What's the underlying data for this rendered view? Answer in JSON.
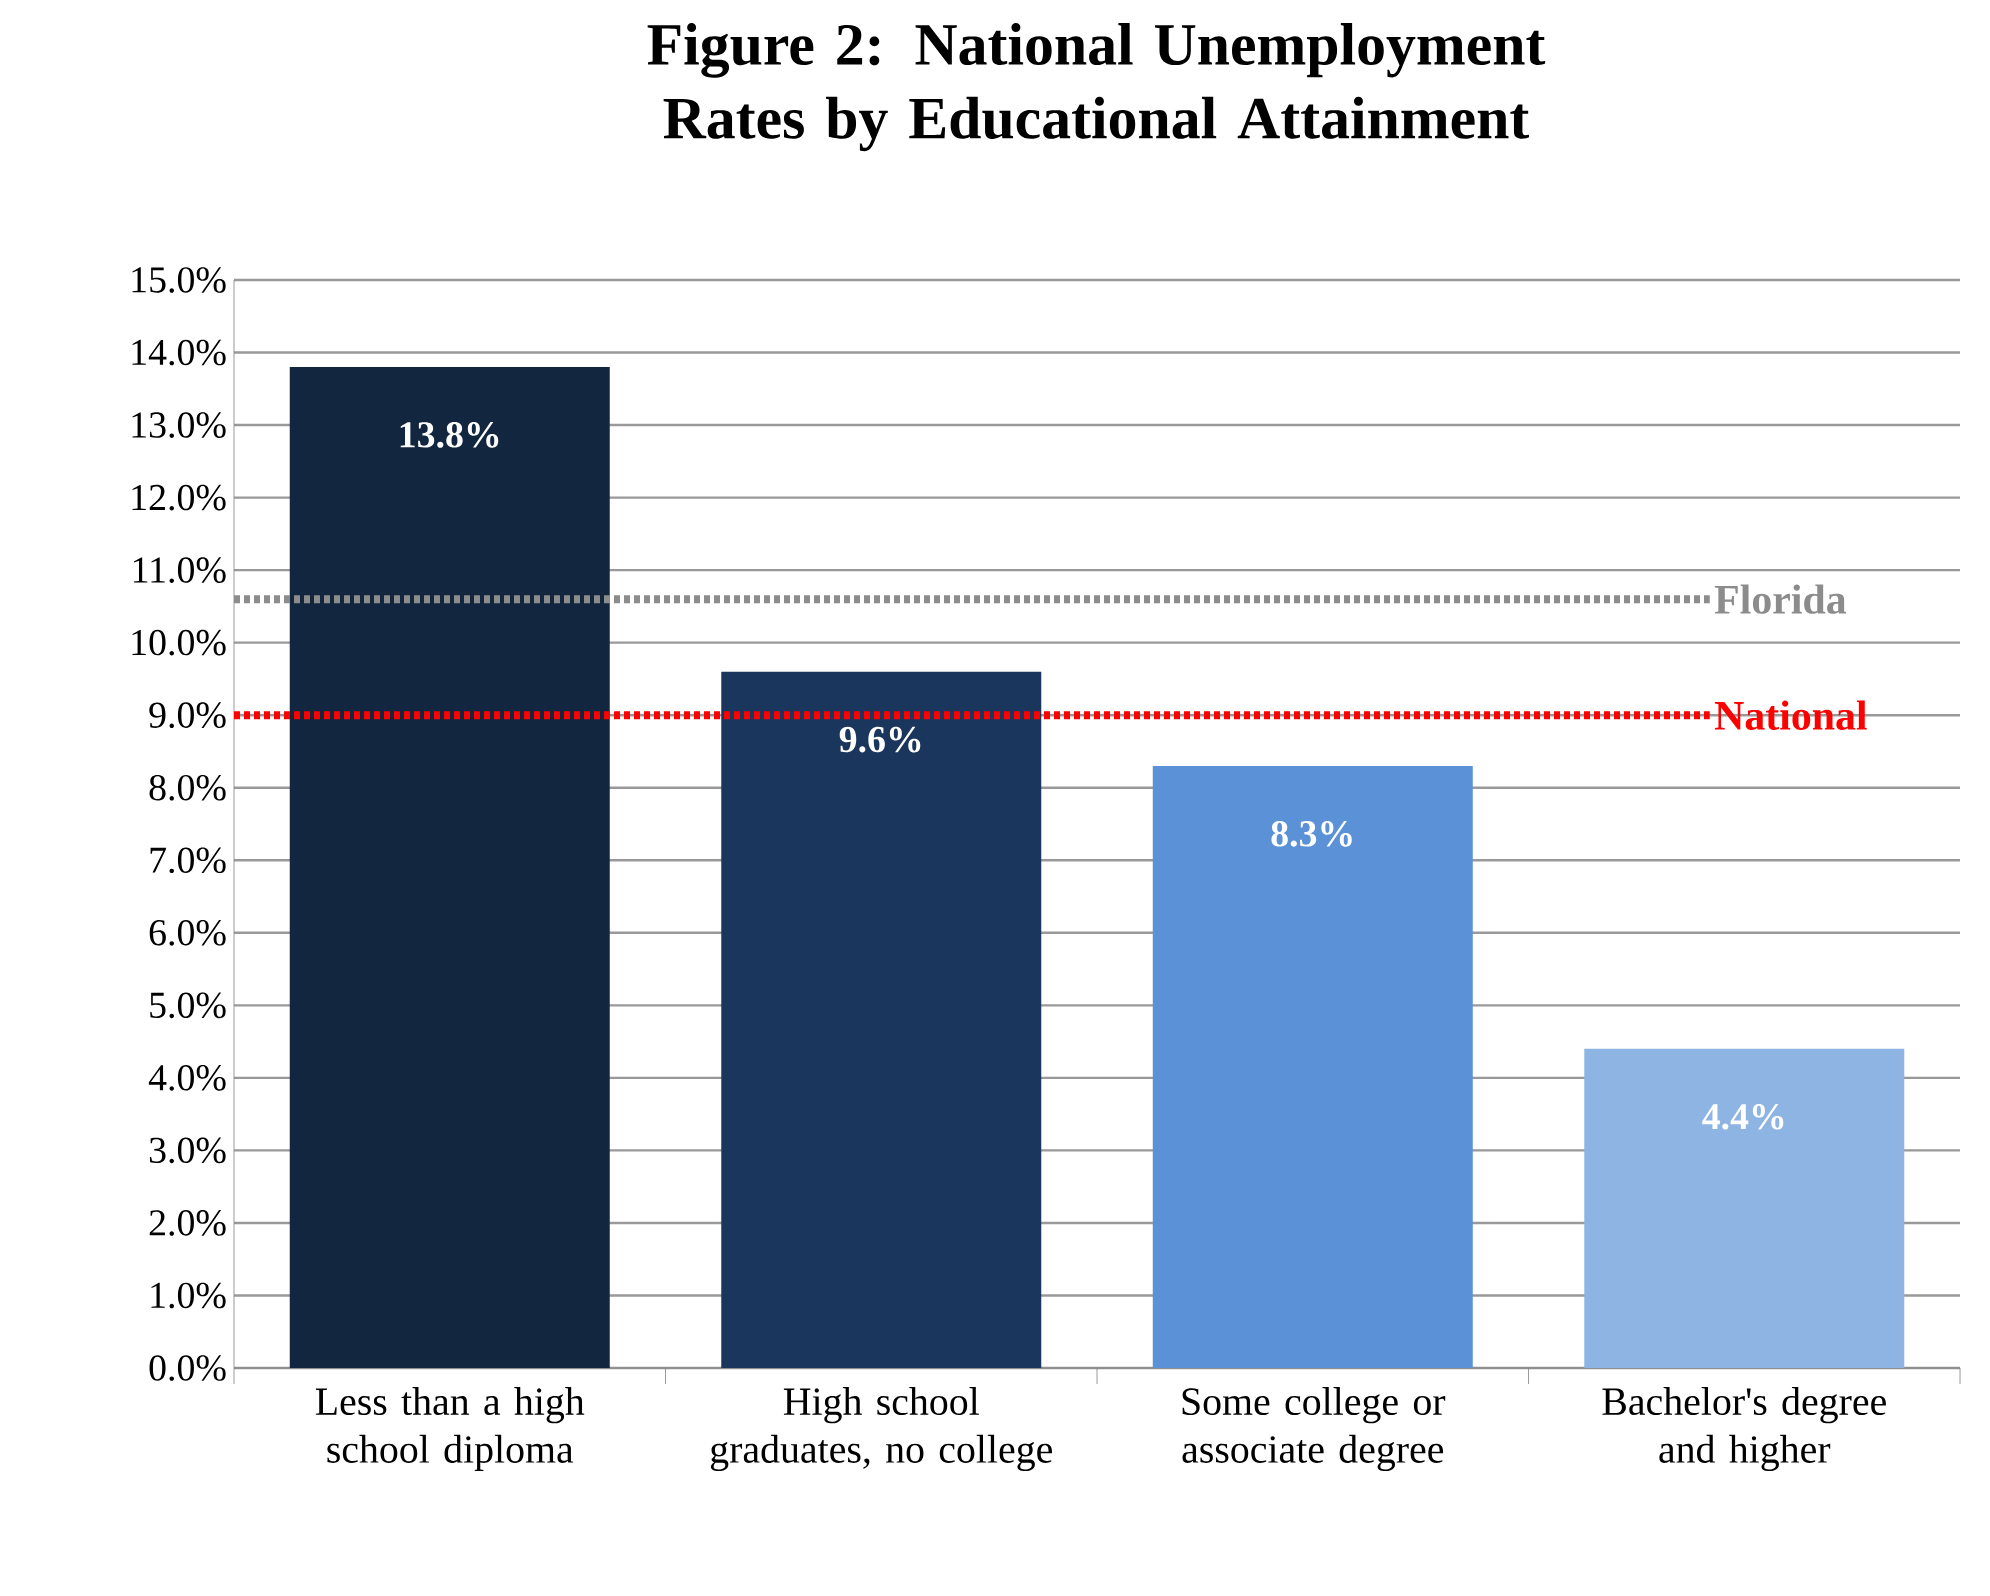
{
  "chart_data": {
    "type": "bar",
    "title": "Figure 2: National Unemployment Rates by Educational Attainment",
    "categories": [
      "Less than a high school diploma",
      "High school graduates, no college",
      "Some college or associate degree",
      "Bachelor's degree and higher"
    ],
    "values": [
      13.8,
      9.6,
      8.3,
      4.4
    ],
    "colors": [
      "#13263f",
      "#1b365d",
      "#5b91d6",
      "#8eb4e3"
    ],
    "value_labels": [
      "13.8%",
      "9.6%",
      "8.3%",
      "4.4%"
    ],
    "ylim": [
      0,
      15
    ],
    "yticks": [
      {
        "value": 0,
        "label": "0.0%"
      },
      {
        "value": 1,
        "label": "1.0%"
      },
      {
        "value": 2,
        "label": "2.0%"
      },
      {
        "value": 3,
        "label": "3.0%"
      },
      {
        "value": 4,
        "label": "4.0%"
      },
      {
        "value": 5,
        "label": "5.0%"
      },
      {
        "value": 6,
        "label": "6.0%"
      },
      {
        "value": 7,
        "label": "7.0%"
      },
      {
        "value": 8,
        "label": "8.0%"
      },
      {
        "value": 9,
        "label": "9.0%"
      },
      {
        "value": 10,
        "label": "10.0%"
      },
      {
        "value": 11,
        "label": "11.0%"
      },
      {
        "value": 12,
        "label": "12.0%"
      },
      {
        "value": 13,
        "label": "13.0%"
      },
      {
        "value": 14,
        "label": "14.0%"
      },
      {
        "value": 15,
        "label": "15.0%"
      }
    ],
    "grid": "y",
    "ref_lines": [
      {
        "axis": "y",
        "value": 10.6,
        "label": "Florida",
        "color": "#8c8c8c",
        "line_style": "dotted"
      },
      {
        "axis": "y",
        "value": 9.0,
        "label": "National",
        "color": "#ff0000",
        "line_style": "dotted"
      }
    ]
  }
}
